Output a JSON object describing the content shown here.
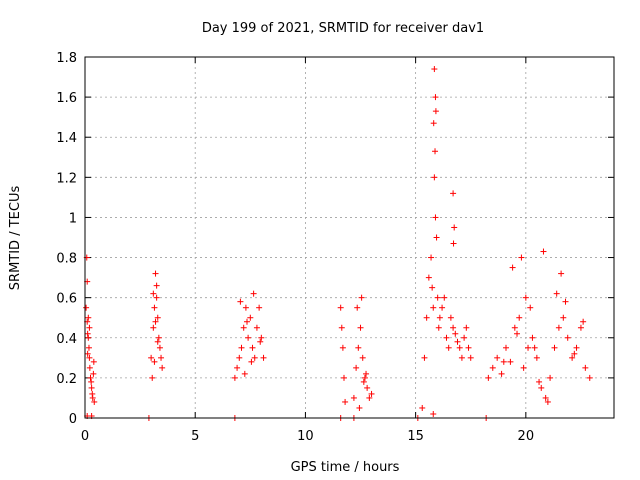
{
  "chart_data": {
    "type": "scatter",
    "title": "Day 199 of 2021, SRMTID for receiver dav1",
    "xlabel": "GPS time / hours",
    "ylabel": "SRMTID / TECUs",
    "xlim": [
      0,
      24
    ],
    "ylim": [
      0,
      1.8
    ],
    "x_ticks": [
      0,
      5,
      10,
      15,
      20
    ],
    "x_tick_labels": [
      "0",
      "5",
      "10",
      "15",
      "20"
    ],
    "y_ticks": [
      0,
      0.2,
      0.4,
      0.6,
      0.8,
      1.0,
      1.2,
      1.4,
      1.6,
      1.8
    ],
    "y_tick_labels": [
      "0",
      "0.2",
      "0.4",
      "0.6",
      "0.8",
      "1",
      "1.2",
      "1.4",
      "1.6",
      "1.8"
    ],
    "grid": true,
    "marker": "+",
    "color": "#ff0000",
    "series": [
      {
        "name": "SRMTID",
        "x": [
          0.05,
          0.08,
          0.1,
          0.12,
          0.15,
          0.18,
          0.2,
          0.22,
          0.25,
          0.28,
          0.3,
          0.33,
          0.35,
          0.38,
          0.4,
          0.42,
          0.15,
          0.2,
          0.1,
          0.12,
          3.0,
          3.05,
          3.1,
          3.15,
          3.2,
          3.25,
          3.3,
          3.35,
          3.4,
          3.45,
          3.5,
          3.1,
          3.2,
          3.3,
          3.15,
          3.25,
          6.8,
          6.9,
          7.0,
          7.1,
          7.2,
          7.3,
          7.4,
          7.5,
          7.6,
          7.7,
          7.8,
          7.9,
          8.0,
          8.1,
          7.05,
          7.35,
          7.65,
          7.95,
          7.25,
          7.55,
          11.6,
          11.65,
          11.7,
          11.75,
          11.8,
          12.2,
          12.3,
          12.4,
          12.5,
          12.6,
          12.7,
          12.8,
          12.9,
          13.0,
          12.35,
          12.55,
          12.75,
          12.65,
          12.45,
          15.3,
          15.4,
          15.5,
          15.6,
          15.7,
          15.75,
          15.8,
          15.85,
          15.9,
          15.95,
          16.0,
          16.05,
          16.1,
          16.2,
          16.3,
          16.4,
          16.5,
          16.6,
          16.7,
          16.8,
          16.9,
          17.0,
          17.1,
          17.2,
          17.3,
          17.4,
          17.5,
          15.85,
          15.9,
          15.82,
          15.88,
          15.92,
          16.7,
          16.75,
          16.72,
          18.3,
          18.5,
          18.7,
          18.9,
          19.1,
          19.3,
          19.5,
          19.7,
          19.9,
          20.1,
          20.3,
          20.5,
          20.7,
          20.9,
          21.1,
          21.3,
          21.5,
          21.7,
          21.9,
          22.1,
          22.3,
          22.5,
          22.7,
          22.9,
          19.4,
          19.8,
          20.0,
          20.4,
          20.6,
          21.0,
          21.4,
          21.8,
          22.2,
          22.6,
          20.2,
          20.8,
          21.6,
          19.0,
          19.6,
          0.1,
          0.3,
          2.9,
          6.8,
          11.6,
          12.2,
          15.1,
          15.8,
          18.2
        ],
        "y": [
          0.55,
          0.8,
          0.68,
          0.42,
          0.5,
          0.35,
          0.3,
          0.25,
          0.2,
          0.18,
          0.15,
          0.12,
          0.1,
          0.22,
          0.28,
          0.08,
          0.4,
          0.45,
          0.48,
          0.32,
          0.3,
          0.2,
          0.45,
          0.55,
          0.72,
          0.6,
          0.5,
          0.4,
          0.35,
          0.3,
          0.25,
          0.62,
          0.48,
          0.38,
          0.28,
          0.66,
          0.2,
          0.25,
          0.3,
          0.35,
          0.45,
          0.55,
          0.4,
          0.5,
          0.35,
          0.3,
          0.45,
          0.55,
          0.4,
          0.3,
          0.58,
          0.48,
          0.62,
          0.38,
          0.22,
          0.28,
          0.55,
          0.45,
          0.35,
          0.2,
          0.08,
          0.1,
          0.25,
          0.35,
          0.45,
          0.3,
          0.2,
          0.15,
          0.1,
          0.12,
          0.55,
          0.6,
          0.22,
          0.18,
          0.05,
          0.05,
          0.3,
          0.5,
          0.7,
          0.8,
          0.65,
          0.55,
          1.2,
          1.0,
          0.9,
          0.6,
          0.45,
          0.5,
          0.55,
          0.6,
          0.4,
          0.35,
          0.5,
          0.45,
          0.42,
          0.38,
          0.35,
          0.3,
          0.4,
          0.45,
          0.35,
          0.3,
          1.74,
          1.6,
          1.47,
          1.33,
          1.53,
          1.12,
          0.95,
          0.87,
          0.2,
          0.25,
          0.3,
          0.22,
          0.35,
          0.28,
          0.45,
          0.5,
          0.25,
          0.35,
          0.4,
          0.3,
          0.15,
          0.1,
          0.2,
          0.35,
          0.45,
          0.5,
          0.4,
          0.3,
          0.35,
          0.45,
          0.25,
          0.2,
          0.75,
          0.8,
          0.6,
          0.35,
          0.18,
          0.08,
          0.62,
          0.58,
          0.32,
          0.48,
          0.55,
          0.83,
          0.72,
          0.28,
          0.42,
          0.01,
          0.01,
          0.0,
          0.0,
          0.0,
          0.0,
          0.0,
          0.02,
          0.0
        ]
      }
    ]
  }
}
